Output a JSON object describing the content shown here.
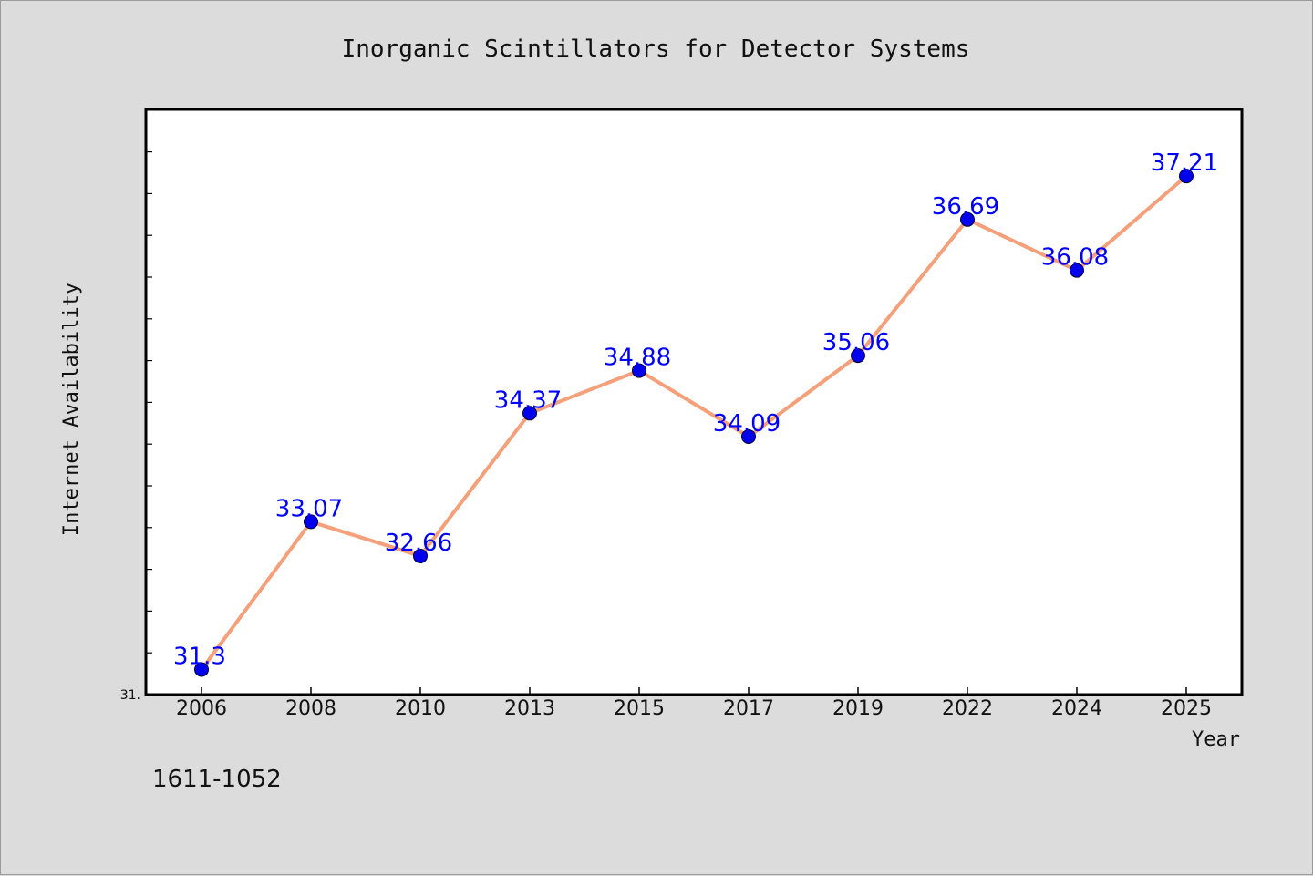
{
  "chart_data": {
    "type": "line",
    "title": "Inorganic Scintillators for Detector Systems",
    "xlabel": "Year",
    "ylabel": "Internet Availability",
    "categories": [
      "2006",
      "2008",
      "2010",
      "2013",
      "2015",
      "2017",
      "2019",
      "2022",
      "2024",
      "2025"
    ],
    "series": [
      {
        "values": [
          31.3,
          33.07,
          32.66,
          34.37,
          34.88,
          34.09,
          35.06,
          36.69,
          36.08,
          37.21
        ],
        "labels": [
          "31.3",
          "33.07",
          "32.66",
          "34.37",
          "34.88",
          "34.09",
          "35.06",
          "36.69",
          "36.08",
          "37.21"
        ],
        "line_color": "#f4a07a",
        "marker_color": "#0000ee"
      }
    ],
    "ylim": [
      31,
      38
    ],
    "y_min_label": "31.",
    "grid": false,
    "legend": "none",
    "colors": {
      "background": "#dcdcdc",
      "plot_background": "#ffffff",
      "label_color": "#0000ff"
    }
  },
  "footnote": "1611-1052"
}
